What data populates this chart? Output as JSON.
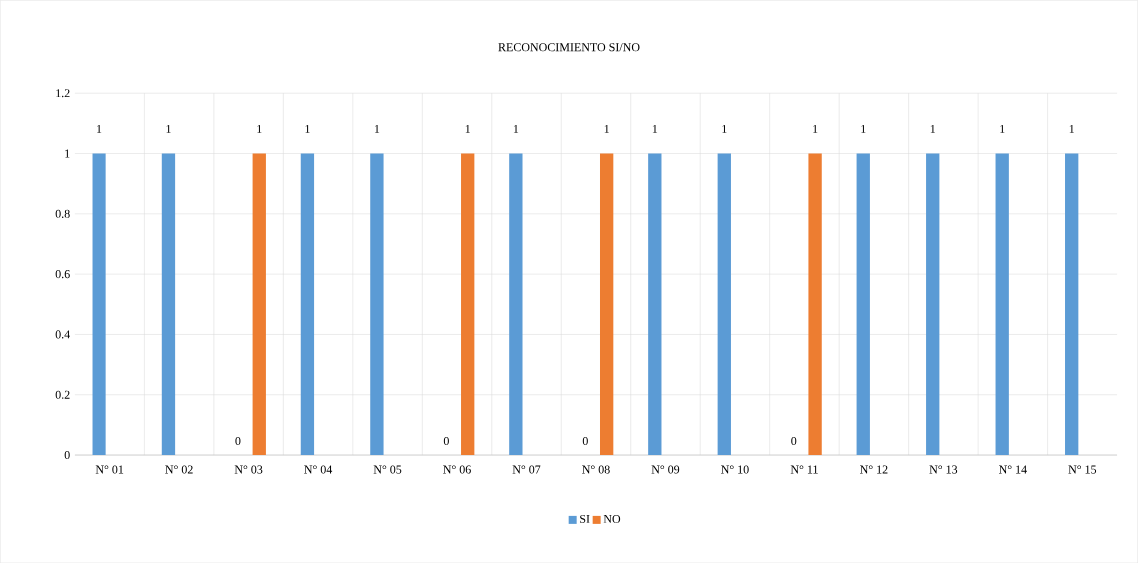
{
  "chart_data": {
    "type": "bar",
    "title": "RECONOCIMIENTO SI/NO",
    "categories": [
      "N° 01",
      "N° 02",
      "N° 03",
      "N° 04",
      "N° 05",
      "N° 06",
      "N° 07",
      "N° 08",
      "N° 09",
      "N° 10",
      "N° 11",
      "N° 12",
      "N° 13",
      "N° 14",
      "N° 15"
    ],
    "series": [
      {
        "name": "SI",
        "color": "#5b9bd5",
        "values": [
          1,
          1,
          0,
          1,
          1,
          0,
          1,
          0,
          1,
          1,
          0,
          1,
          1,
          1,
          1
        ]
      },
      {
        "name": "NO",
        "color": "#ed7d31",
        "values": [
          null,
          null,
          1,
          null,
          null,
          1,
          null,
          1,
          null,
          null,
          1,
          null,
          null,
          null,
          null
        ]
      }
    ],
    "ylim": [
      0,
      1.2
    ],
    "yticks": [
      0,
      0.2,
      0.4,
      0.6,
      0.8,
      1,
      1.2
    ],
    "grid": true,
    "legend": "bottom",
    "data_labels": true
  }
}
